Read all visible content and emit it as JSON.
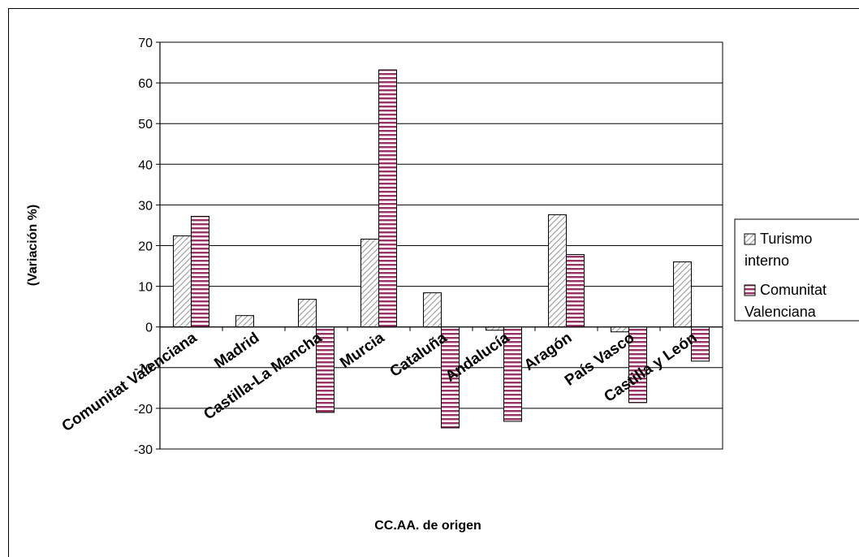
{
  "chart_data": {
    "type": "bar",
    "title": "",
    "xlabel": "CC.AA. de origen",
    "ylabel": "(Variación %)",
    "ylim": [
      -30,
      70
    ],
    "yticks": [
      70,
      60,
      50,
      40,
      30,
      20,
      10,
      0,
      -10,
      -20,
      -30
    ],
    "grid": true,
    "legend_position": "right",
    "categories": [
      "Comunitat Valenciana",
      "Madrid",
      "Castilla-La Mancha",
      "Murcia",
      "Cataluña",
      "Andalucía",
      "Aragón",
      "País Vasco",
      "Castilla y León"
    ],
    "series": [
      {
        "name": "Turismo interno",
        "legend_lines": [
          "Turismo",
          "interno"
        ],
        "pattern": "diagonal",
        "color": "#c0c0c0",
        "values": [
          22.4,
          2.8,
          6.8,
          21.6,
          8.4,
          -0.8,
          27.6,
          -1.2,
          16.0
        ]
      },
      {
        "name": "Comunitat Valenciana",
        "legend_lines": [
          "Comunitat",
          "Valenciana"
        ],
        "pattern": "horizontal",
        "color": "#993366",
        "values": [
          27.2,
          null,
          -21.0,
          63.2,
          -24.8,
          -23.2,
          17.8,
          -18.6,
          -8.4
        ]
      }
    ]
  }
}
